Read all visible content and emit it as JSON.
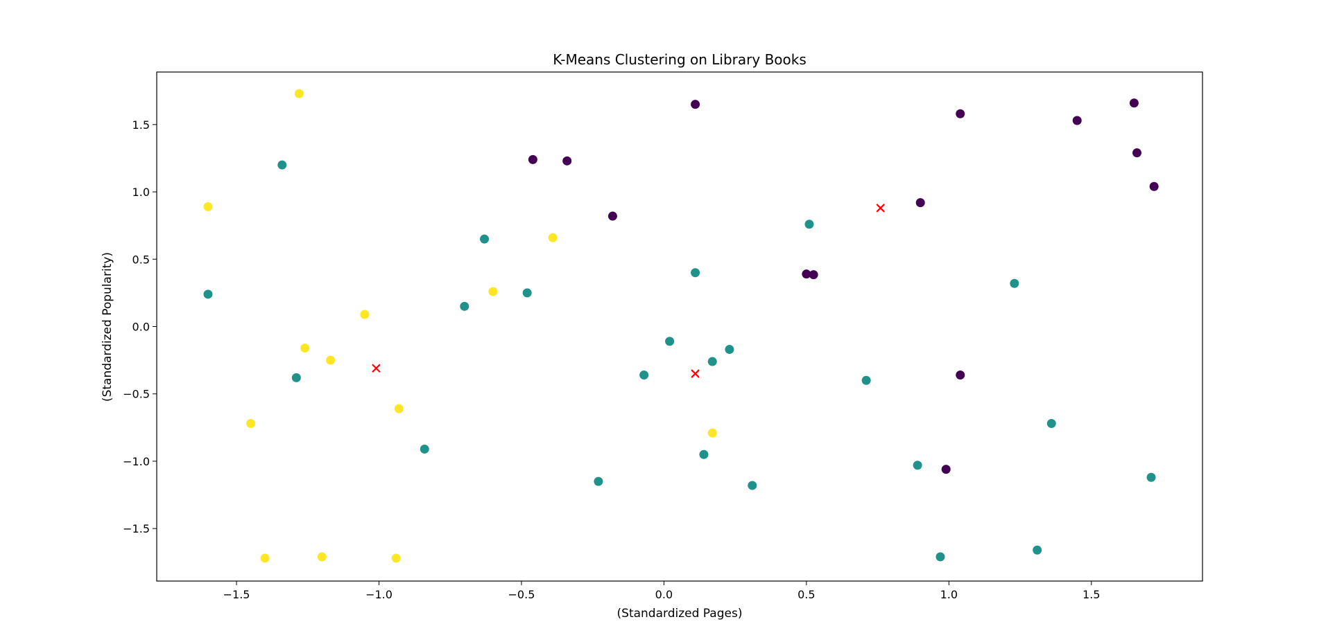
{
  "chart_data": {
    "type": "scatter",
    "title": "K-Means Clustering on Library Books",
    "xlabel": "(Standardized Pages)",
    "ylabel": "(Standardized Popularity)",
    "xlim": [
      -1.78,
      1.89
    ],
    "ylim": [
      -1.89,
      1.89
    ],
    "xticks": [
      -1.5,
      -1.0,
      -0.5,
      0.0,
      0.5,
      1.0,
      1.5
    ],
    "xtick_labels": [
      "−1.5",
      "−1.0",
      "−0.5",
      "0.0",
      "0.5",
      "1.0",
      "1.5"
    ],
    "yticks": [
      -1.5,
      -1.0,
      -0.5,
      0.0,
      0.5,
      1.0,
      1.5
    ],
    "ytick_labels": [
      "−1.5",
      "−1.0",
      "−0.5",
      "0.0",
      "0.5",
      "1.0",
      "1.5"
    ],
    "grid": false,
    "legend": "none",
    "series": [
      {
        "color": "#440154",
        "points": [
          [
            0.11,
            1.65
          ],
          [
            1.04,
            1.58
          ],
          [
            1.65,
            1.66
          ],
          [
            1.45,
            1.53
          ],
          [
            1.66,
            1.29
          ],
          [
            1.72,
            1.04
          ],
          [
            -0.46,
            1.24
          ],
          [
            -0.34,
            1.23
          ],
          [
            -0.18,
            0.82
          ],
          [
            0.9,
            0.92
          ],
          [
            0.5,
            0.39
          ],
          [
            0.525,
            0.385
          ],
          [
            1.04,
            -0.36
          ],
          [
            0.99,
            -1.06
          ]
        ]
      },
      {
        "color": "#21918c",
        "points": [
          [
            -1.34,
            1.2
          ],
          [
            -1.6,
            0.24
          ],
          [
            -0.63,
            0.65
          ],
          [
            -0.7,
            0.15
          ],
          [
            -0.48,
            0.25
          ],
          [
            0.51,
            0.76
          ],
          [
            0.11,
            0.4
          ],
          [
            0.02,
            -0.11
          ],
          [
            -0.07,
            -0.36
          ],
          [
            0.17,
            -0.26
          ],
          [
            0.23,
            -0.17
          ],
          [
            1.23,
            0.32
          ],
          [
            0.71,
            -0.4
          ],
          [
            -1.29,
            -0.38
          ],
          [
            -0.84,
            -0.91
          ],
          [
            0.14,
            -0.95
          ],
          [
            -0.23,
            -1.15
          ],
          [
            0.31,
            -1.18
          ],
          [
            0.89,
            -1.03
          ],
          [
            1.36,
            -0.72
          ],
          [
            1.71,
            -1.12
          ],
          [
            0.97,
            -1.71
          ],
          [
            1.31,
            -1.66
          ]
        ]
      },
      {
        "color": "#fde725",
        "points": [
          [
            -1.28,
            1.73
          ],
          [
            -1.6,
            0.89
          ],
          [
            -0.39,
            0.66
          ],
          [
            -0.6,
            0.26
          ],
          [
            -1.05,
            0.09
          ],
          [
            -1.26,
            -0.16
          ],
          [
            -1.17,
            -0.25
          ],
          [
            -1.45,
            -0.72
          ],
          [
            -0.93,
            -0.61
          ],
          [
            0.17,
            -0.79
          ],
          [
            -1.4,
            -1.72
          ],
          [
            -1.2,
            -1.71
          ],
          [
            -0.94,
            -1.72
          ]
        ]
      }
    ],
    "centroids": {
      "color": "#ff0000",
      "marker": "x",
      "points": [
        [
          0.76,
          0.88
        ],
        [
          -1.01,
          -0.31
        ],
        [
          0.11,
          -0.35
        ]
      ]
    }
  }
}
